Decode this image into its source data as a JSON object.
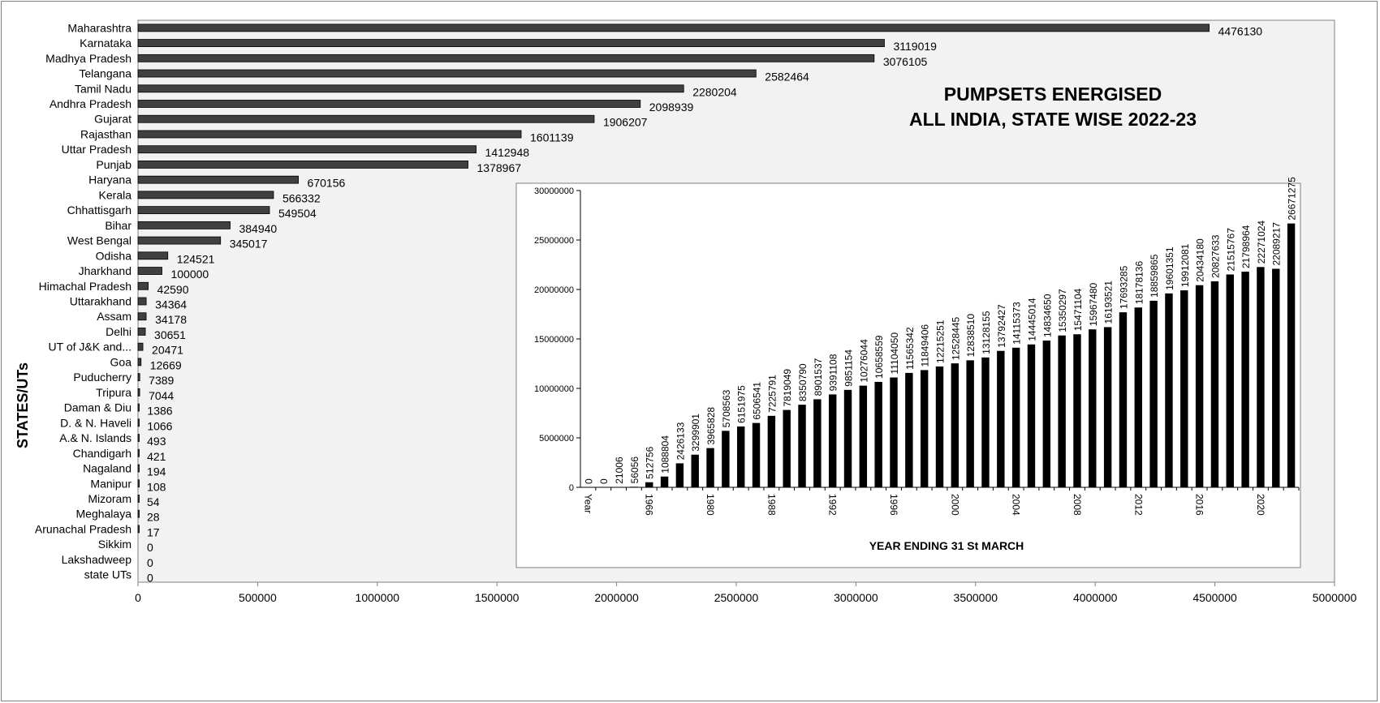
{
  "chart_data": [
    {
      "type": "bar",
      "orientation": "horizontal",
      "title": "PUMPSETS ENERGISED",
      "subtitle": "ALL INDIA, STATE WISE  2022-23",
      "ylabel": "STATES/UTs",
      "xlabel": "",
      "xlim": [
        0,
        5000000
      ],
      "xticks": [
        "0",
        "500000",
        "1000000",
        "1500000",
        "2000000",
        "2500000",
        "3000000",
        "3500000",
        "4000000",
        "4500000",
        "5000000"
      ],
      "bar_color": "#404040",
      "categories": [
        "Maharashtra",
        "Karnataka",
        "Madhya Pradesh",
        "Telangana",
        "Tamil Nadu",
        "Andhra Pradesh",
        "Gujarat",
        "Rajasthan",
        "Uttar Pradesh",
        "Punjab",
        "Haryana",
        "Kerala",
        "Chhattisgarh",
        "Bihar",
        "West Bengal",
        "Odisha",
        "Jharkhand",
        "Himachal Pradesh",
        "Uttarakhand",
        "Assam",
        "Delhi",
        "UT of J&K and...",
        "Goa",
        "Puducherry",
        "Tripura",
        "Daman & Diu",
        "D. & N. Haveli",
        "A.& N. Islands",
        "Chandigarh",
        "Nagaland",
        "Manipur",
        "Mizoram",
        "Meghalaya",
        "Arunachal Pradesh",
        "Sikkim",
        "Lakshadweep",
        "state UTs"
      ],
      "values": [
        4476130,
        3119019,
        3076105,
        2582464,
        2280204,
        2098939,
        1906207,
        1601139,
        1412948,
        1378967,
        670156,
        566332,
        549504,
        384940,
        345017,
        124521,
        100000,
        42590,
        34364,
        34178,
        30651,
        20471,
        12669,
        7389,
        7044,
        1386,
        1066,
        493,
        421,
        194,
        108,
        54,
        28,
        17,
        0,
        0,
        0
      ],
      "grid": false,
      "legend": "none"
    },
    {
      "type": "bar",
      "title": "",
      "xlabel": "YEAR ENDING 31 St MARCH",
      "ylabel": "",
      "ylim": [
        0,
        30000000
      ],
      "yticks": [
        "0",
        "5000000",
        "10000000",
        "15000000",
        "20000000",
        "25000000",
        "30000000"
      ],
      "bar_color": "#000000",
      "categories": [
        "Year",
        "",
        "",
        "",
        "1966",
        "",
        "",
        "",
        "1980",
        "",
        "",
        "",
        "1988",
        "",
        "",
        "",
        "1992",
        "",
        "",
        "",
        "1996",
        "",
        "",
        "",
        "2000",
        "",
        "",
        "",
        "2004",
        "",
        "",
        "",
        "2008",
        "",
        "",
        "",
        "2012",
        "",
        "",
        "",
        "2016",
        "",
        "",
        "",
        "2020",
        "",
        ""
      ],
      "values": [
        0,
        0,
        21006,
        56056,
        512756,
        1088804,
        2426133,
        3299901,
        3965828,
        5708563,
        6151975,
        6506541,
        7225791,
        7819049,
        8350790,
        8901537,
        9391108,
        9851154,
        10276044,
        10658559,
        11104050,
        11565342,
        11849406,
        12215251,
        12528445,
        12838510,
        13128155,
        13792427,
        14115373,
        14445014,
        14834650,
        15350297,
        15471104,
        15967480,
        16193521,
        17693285,
        18178136,
        18859865,
        19601351,
        19912081,
        20434180,
        20827633,
        21515767,
        21798964,
        22271024,
        22089217,
        26671275
      ],
      "data_labels": [
        "0",
        "0",
        "21006",
        "56056",
        "512756",
        "1088804",
        "2426133",
        "3299901",
        "3965828",
        "5708563",
        "6151975",
        "6506541",
        "7225791",
        "7819049",
        "8350790",
        "8901537",
        "9391108",
        "9851154",
        "10276044",
        "10658559",
        "11104050",
        "11565342",
        "11849406",
        "12215251",
        "12528445",
        "12838510",
        "13128155",
        "13792427",
        "14115373",
        "14445014",
        "14834650",
        "15350297",
        "15471104",
        "15967480",
        "16193521",
        "17693285",
        "18178136",
        "18859865",
        "19601351",
        "19912081",
        "20434180",
        "20827633",
        "21515767",
        "21798964",
        "22271024",
        "22089217",
        "26671275"
      ],
      "grid": false,
      "legend": "none"
    }
  ]
}
